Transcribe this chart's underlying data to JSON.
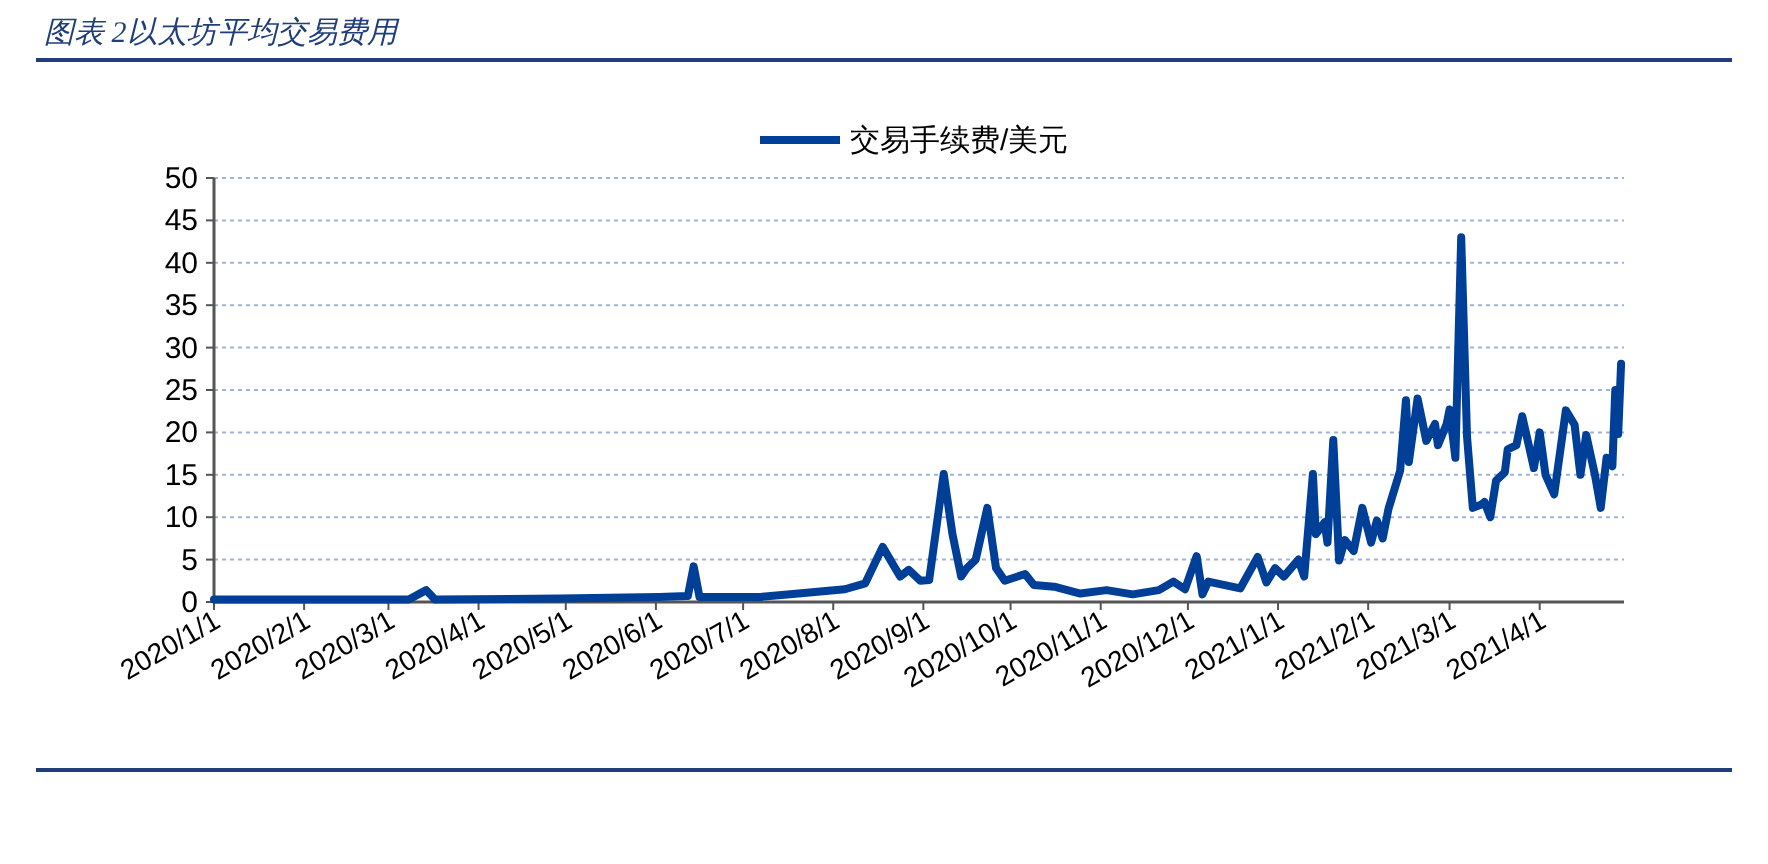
{
  "chart_data": {
    "type": "line",
    "title": "图表 2以太坊平均交易费用",
    "xlim": [
      "2020-01-01",
      "2021-04-30"
    ],
    "xticks": [
      {
        "value": "2020-01-01",
        "label": "2020/1/1"
      },
      {
        "value": "2020-02-01",
        "label": "2020/2/1"
      },
      {
        "value": "2020-03-01",
        "label": "2020/3/1"
      },
      {
        "value": "2020-04-01",
        "label": "2020/4/1"
      },
      {
        "value": "2020-05-01",
        "label": "2020/5/1"
      },
      {
        "value": "2020-06-01",
        "label": "2020/6/1"
      },
      {
        "value": "2020-07-01",
        "label": "2020/7/1"
      },
      {
        "value": "2020-08-01",
        "label": "2020/8/1"
      },
      {
        "value": "2020-09-01",
        "label": "2020/9/1"
      },
      {
        "value": "2020-10-01",
        "label": "2020/10/1"
      },
      {
        "value": "2020-11-01",
        "label": "2020/11/1"
      },
      {
        "value": "2020-12-01",
        "label": "2020/12/1"
      },
      {
        "value": "2021-01-01",
        "label": "2021/1/1"
      },
      {
        "value": "2021-02-01",
        "label": "2021/2/1"
      },
      {
        "value": "2021-03-01",
        "label": "2021/3/1"
      },
      {
        "value": "2021-04-01",
        "label": "2021/4/1"
      }
    ],
    "ylim": [
      0,
      50
    ],
    "yticks": [
      0,
      5,
      10,
      15,
      20,
      25,
      30,
      35,
      40,
      45,
      50
    ],
    "grid": "y",
    "legend": "top",
    "marker": "none",
    "line_style": "solid",
    "x": [
      "2020-01-01",
      "2020-01-31",
      "2020-03-08",
      "2020-03-14",
      "2020-03-17",
      "2020-04-29",
      "2020-06-02",
      "2020-06-12",
      "2020-06-14",
      "2020-06-16",
      "2020-07-07",
      "2020-07-20",
      "2020-08-05",
      "2020-08-12",
      "2020-08-18",
      "2020-08-24",
      "2020-08-27",
      "2020-08-31",
      "2020-09-03",
      "2020-09-08",
      "2020-09-11",
      "2020-09-14",
      "2020-09-16",
      "2020-09-19",
      "2020-09-23",
      "2020-09-26",
      "2020-09-29",
      "2020-10-06",
      "2020-10-09",
      "2020-10-16",
      "2020-10-25",
      "2020-11-03",
      "2020-11-12",
      "2020-11-21",
      "2020-11-26",
      "2020-11-30",
      "2020-12-04",
      "2020-12-06",
      "2020-12-08",
      "2020-12-19",
      "2020-12-25",
      "2020-12-28",
      "2020-12-31",
      "2021-01-03",
      "2021-01-08",
      "2021-01-10",
      "2021-01-13",
      "2021-01-14",
      "2021-01-17",
      "2021-01-18",
      "2021-01-20",
      "2021-01-22",
      "2021-01-24",
      "2021-01-27",
      "2021-01-30",
      "2021-02-02",
      "2021-02-04",
      "2021-02-06",
      "2021-02-08",
      "2021-02-12",
      "2021-02-14",
      "2021-02-15",
      "2021-02-18",
      "2021-02-21",
      "2021-02-24",
      "2021-02-25",
      "2021-02-28",
      "2021-03-01",
      "2021-03-03",
      "2021-03-05",
      "2021-03-07",
      "2021-03-09",
      "2021-03-12",
      "2021-03-13",
      "2021-03-15",
      "2021-03-17",
      "2021-03-20",
      "2021-03-21",
      "2021-03-24",
      "2021-03-26",
      "2021-03-30",
      "2021-04-01",
      "2021-04-03",
      "2021-04-06",
      "2021-04-10",
      "2021-04-13",
      "2021-04-15",
      "2021-04-17",
      "2021-04-20",
      "2021-04-22",
      "2021-04-24",
      "2021-04-26",
      "2021-04-27",
      "2021-04-28",
      "2021-04-29"
    ],
    "series": [
      {
        "name": "交易手续费/美元",
        "color": "#003f98",
        "values": [
          0.3,
          0.3,
          0.3,
          1.4,
          0.3,
          0.4,
          0.6,
          0.7,
          4.2,
          0.6,
          0.6,
          1.0,
          1.5,
          2.2,
          6.5,
          3,
          3.8,
          2.5,
          2.6,
          15.1,
          8,
          3,
          4,
          5,
          11.1,
          4,
          2.5,
          3.3,
          2,
          1.8,
          1.0,
          1.4,
          0.9,
          1.4,
          2.4,
          1.5,
          5.4,
          0.9,
          2.4,
          1.6,
          5.3,
          2.3,
          4,
          3,
          5,
          3,
          15.1,
          8,
          9.4,
          7,
          19.1,
          4.9,
          7.3,
          6,
          11.1,
          7,
          9.6,
          7.5,
          11,
          15.5,
          23.8,
          16.5,
          24,
          19,
          21,
          18.5,
          21,
          22.7,
          17,
          43,
          19.5,
          11.1,
          11.5,
          11.8,
          10,
          14.3,
          15.3,
          18,
          18.5,
          21.9,
          15.8,
          20,
          15,
          12.7,
          22.6,
          20.9,
          15,
          19.7,
          15,
          11.1,
          17,
          16,
          25,
          19.8,
          28.1
        ]
      }
    ]
  }
}
